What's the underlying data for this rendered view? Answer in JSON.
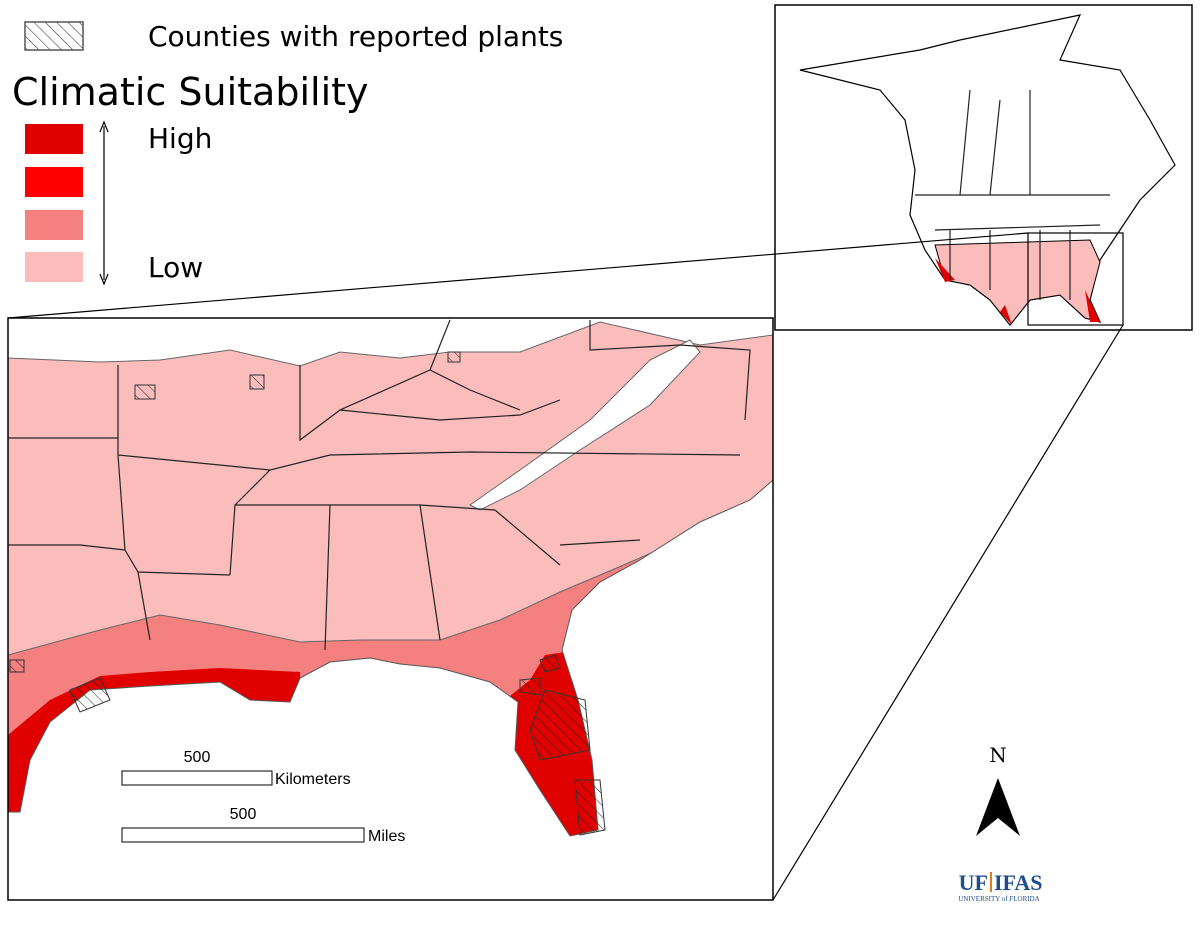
{
  "legend": {
    "hatch_label": "Counties with reported plants",
    "title": "Climatic Suitability",
    "high": "High",
    "low": "Low"
  },
  "scale_bar": {
    "km_value": "500",
    "km_unit": "Kilometers",
    "mi_value": "500",
    "mi_unit": "Miles"
  },
  "north_arrow": {
    "label": "N"
  },
  "logo": {
    "name": "UF",
    "unit": "IFAS",
    "subtitle": "UNIVERSITY of FLORIDA"
  }
}
